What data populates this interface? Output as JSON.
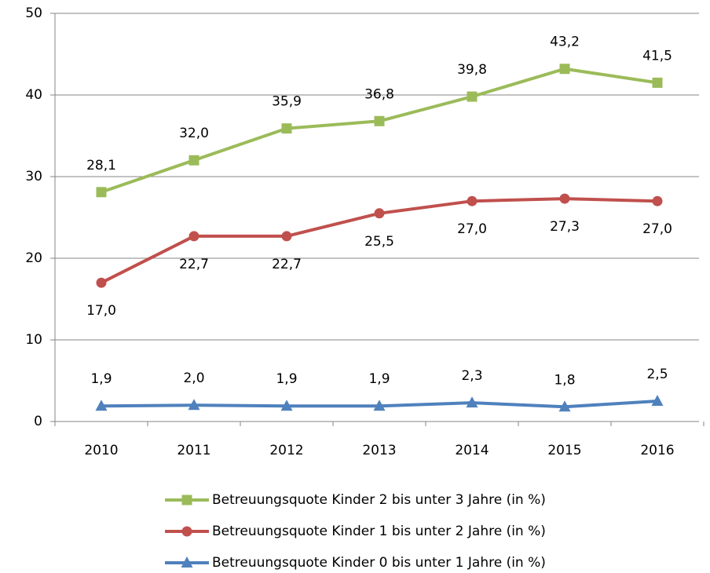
{
  "chart_data": {
    "type": "line",
    "categories": [
      "2010",
      "2011",
      "2012",
      "2013",
      "2014",
      "2015",
      "2016"
    ],
    "series": [
      {
        "name": "Betreuungsquote Kinder 2 bis unter 3 Jahre (in %)",
        "color": "#9bbb59",
        "marker": "square",
        "label_position": "above",
        "values": [
          28.1,
          32.0,
          35.9,
          36.8,
          39.8,
          43.2,
          41.5
        ],
        "value_labels": [
          "28,1",
          "32,0",
          "35,9",
          "36,8",
          "39,8",
          "43,2",
          "41,5"
        ]
      },
      {
        "name": "Betreuungsquote Kinder 1 bis unter 2 Jahre (in %)",
        "color": "#c0504d",
        "marker": "circle",
        "label_position": "below",
        "values": [
          17.0,
          22.7,
          22.7,
          25.5,
          27.0,
          27.3,
          27.0
        ],
        "value_labels": [
          "17,0",
          "22,7",
          "22,7",
          "25,5",
          "27,0",
          "27,3",
          "27,0"
        ]
      },
      {
        "name": "Betreuungsquote Kinder 0 bis unter 1 Jahre (in %)",
        "color": "#4f81bd",
        "marker": "triangle",
        "label_position": "above",
        "values": [
          1.9,
          2.0,
          1.9,
          1.9,
          2.3,
          1.8,
          2.5
        ],
        "value_labels": [
          "1,9",
          "2,0",
          "1,9",
          "1,9",
          "2,3",
          "1,8",
          "2,5"
        ]
      }
    ],
    "ylim": [
      0,
      50
    ],
    "yticks": [
      0,
      10,
      20,
      30,
      40,
      50
    ],
    "grid": true,
    "legend": "bottom"
  }
}
